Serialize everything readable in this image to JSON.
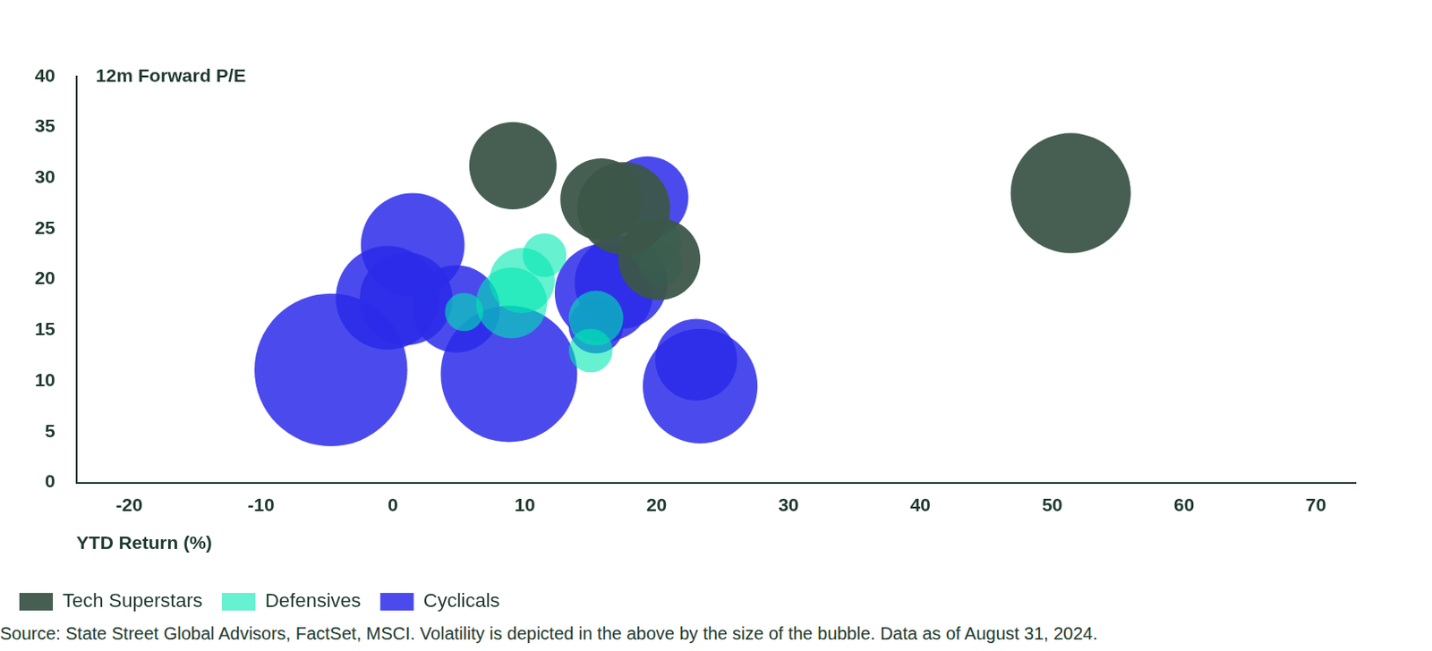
{
  "chart_data": {
    "type": "bubble",
    "x_label": "YTD Return (%)",
    "y_label": "12m Forward P/E",
    "source": "Source: State Street Global Advisors, FactSet, MSCI. Volatility is depicted in the above by the size of the bubble. Data as of August 31, 2024.",
    "xlim": [
      -24,
      73
    ],
    "xticks": [
      -20,
      -10,
      0,
      10,
      20,
      30,
      40,
      50,
      60,
      70
    ],
    "ylim": [
      0,
      40
    ],
    "yticks": [
      0,
      5,
      10,
      15,
      20,
      25,
      30,
      35,
      40
    ],
    "grid": false,
    "legend": "bottom-left",
    "series": [
      {
        "name": "Tech Superstars",
        "color": "#3c5649",
        "x": [
          9.1,
          15.8,
          17.5,
          20.2,
          51.4
        ],
        "y": [
          31.2,
          27.9,
          27.0,
          22.0,
          28.5
        ],
        "volatility": [
          16,
          15,
          17,
          15,
          22
        ]
      },
      {
        "name": "Defensives",
        "color": "#00e8b0",
        "x": [
          11.5,
          9.8,
          9.0,
          19.8,
          20.3,
          15.0,
          15.4,
          5.4
        ],
        "y": [
          22.4,
          19.9,
          17.7,
          23.6,
          21.5,
          13.0,
          16.2,
          16.8
        ],
        "volatility": [
          8,
          12,
          13,
          10,
          8,
          8,
          10,
          7
        ]
      },
      {
        "name": "Cyclicals",
        "color": "#2b2bea",
        "x": [
          -4.7,
          1.5,
          -0.4,
          1.0,
          4.8,
          8.8,
          16.0,
          17.3,
          19.3,
          23.0,
          23.3,
          15.4
        ],
        "y": [
          11.1,
          23.4,
          18.2,
          18.1,
          17.1,
          10.7,
          18.7,
          19.7,
          28.1,
          12.1,
          9.5,
          15.4
        ],
        "volatility": [
          28,
          19,
          19,
          17,
          16,
          25,
          18,
          17,
          15,
          15,
          21,
          10
        ]
      }
    ]
  }
}
